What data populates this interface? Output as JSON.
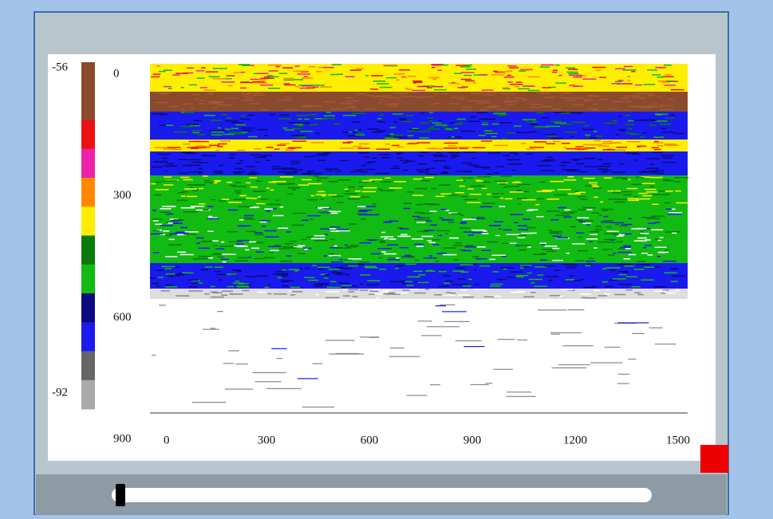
{
  "colorbar": {
    "top_label": "-56",
    "bottom_label": "-92",
    "colors": [
      "#8b4a2c",
      "#8b4a2c",
      "#ee1111",
      "#ee22aa",
      "#ff8800",
      "#ffee00",
      "#0a7a0a",
      "#11bb11",
      "#0a0a80",
      "#1a1aee",
      "#666666",
      "#aaaaaa"
    ]
  },
  "y_axis": {
    "ticks": [
      0,
      300,
      600,
      900
    ]
  },
  "x_axis": {
    "ticks": [
      0,
      300,
      600,
      900,
      1200,
      1500
    ]
  }
}
